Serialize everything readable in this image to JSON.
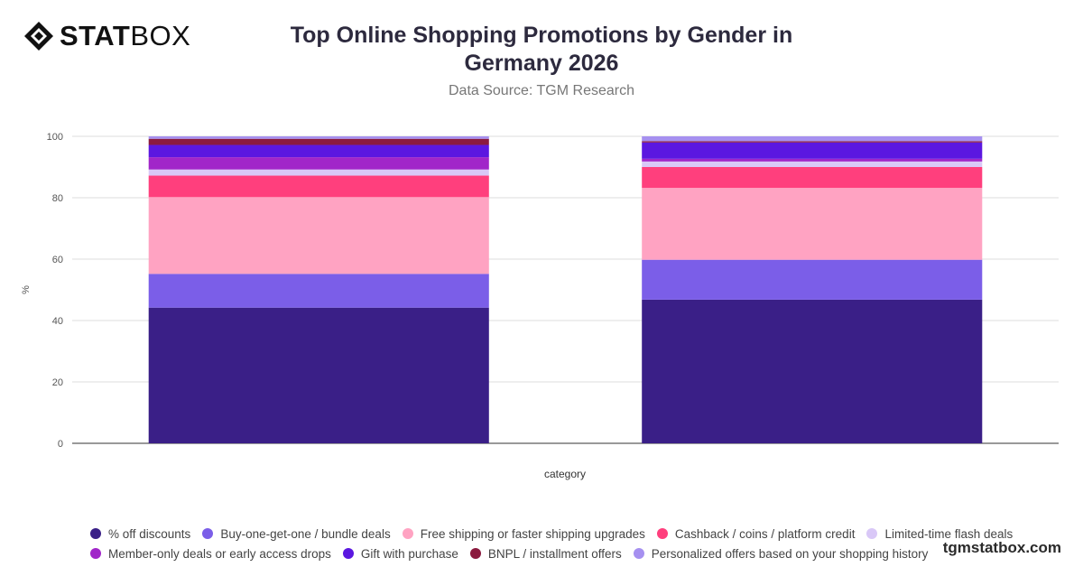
{
  "brand": {
    "logo_bold": "STAT",
    "logo_regular": "BOX",
    "watermark": "tgmstatbox.com"
  },
  "chart_data": {
    "type": "bar",
    "stacked": true,
    "title": "Top Online Shopping Promotions by Gender in Germany 2026",
    "title_lines": [
      "Top Online Shopping Promotions by Gender in",
      "Germany 2026"
    ],
    "subtitle": "Data Source: TGM Research",
    "xlabel": "category",
    "ylabel": "%",
    "ylim": [
      0,
      100
    ],
    "yticks": [
      0,
      20,
      40,
      60,
      80,
      100
    ],
    "grid": true,
    "legend_position": "bottom",
    "categories": [
      "",
      ""
    ],
    "series": [
      {
        "name": "% off discounts",
        "color": "#3a1f87",
        "values": [
          44.2,
          46.8
        ]
      },
      {
        "name": "Buy-one-get-one / bundle deals",
        "color": "#7b5ee8",
        "values": [
          11.0,
          13.0
        ]
      },
      {
        "name": "Free shipping or faster shipping upgrades",
        "color": "#ffa3c2",
        "values": [
          25.0,
          23.4
        ]
      },
      {
        "name": "Cashback / coins / platform credit",
        "color": "#ff3f7d",
        "values": [
          7.0,
          6.8
        ]
      },
      {
        "name": "Limited-time flash deals",
        "color": "#d9c8f7",
        "values": [
          2.0,
          1.8
        ]
      },
      {
        "name": "Member-only deals or early access drops",
        "color": "#a126c9",
        "values": [
          4.0,
          0.9
        ]
      },
      {
        "name": "Gift with purchase",
        "color": "#5b17e0",
        "values": [
          4.0,
          5.3
        ]
      },
      {
        "name": "BNPL / installment offers",
        "color": "#8b1a3f",
        "values": [
          2.0,
          0.4
        ]
      },
      {
        "name": "Personalized offers based on your shopping history",
        "color": "#a690f0",
        "values": [
          0.8,
          1.6
        ]
      }
    ]
  }
}
